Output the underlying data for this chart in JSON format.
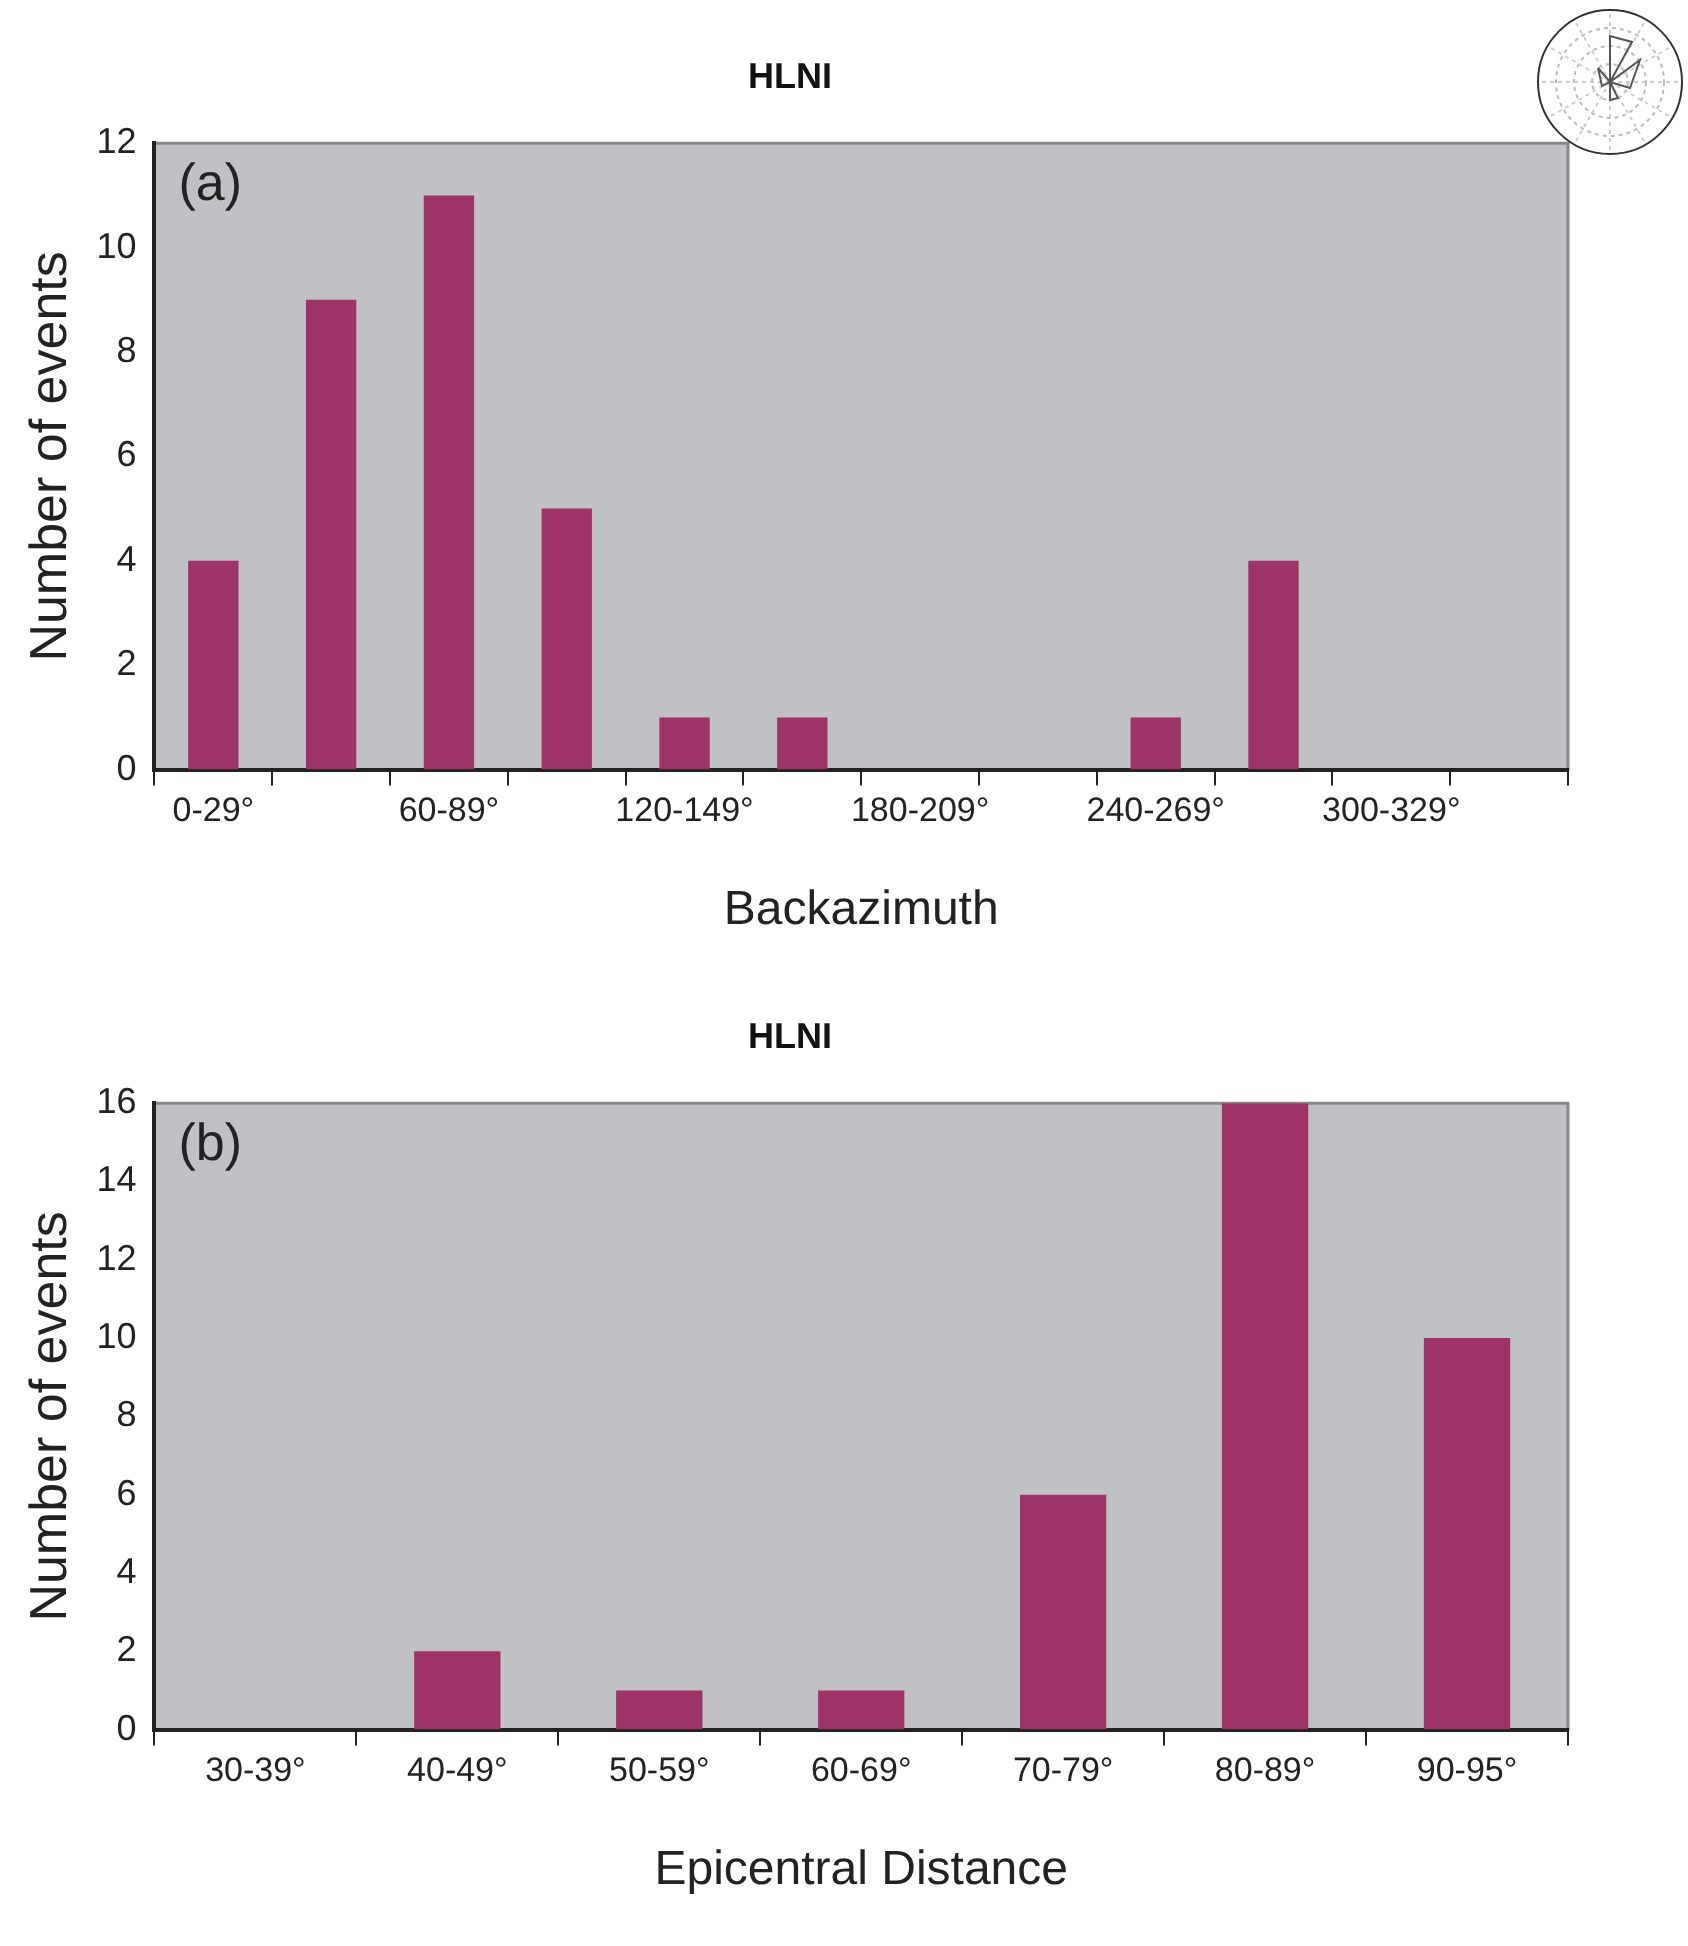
{
  "chart_data": [
    {
      "type": "bar",
      "title": "HLNI",
      "xlabel": "Backazimuth",
      "ylabel": "Number of events",
      "categories": [
        "0-29°",
        null,
        "60-89°",
        null,
        "120-149°",
        null,
        "180-209°",
        null,
        "240-269°",
        null,
        "300-329°",
        null
      ],
      "values": [
        4,
        9,
        11,
        5,
        1,
        1,
        0,
        0,
        1,
        4,
        0,
        0
      ],
      "color": "#9e3368",
      "ylim": [
        0,
        12
      ],
      "yticks": [
        0,
        2,
        4,
        6,
        8,
        10,
        12
      ],
      "grid": false,
      "annotations": [
        "(a)"
      ]
    },
    {
      "type": "bar",
      "title": "HLNI",
      "xlabel": "Epicentral Distance",
      "ylabel": "Number of events",
      "categories": [
        "30-39°",
        "40-49°",
        "50-59°",
        "60-69°",
        "70-79°",
        "80-89°",
        "90-95°"
      ],
      "values": [
        0,
        2,
        1,
        1,
        6,
        16,
        10
      ],
      "color": "#9e3368",
      "ylim": [
        0,
        16
      ],
      "yticks": [
        0,
        2,
        4,
        6,
        8,
        10,
        12,
        14,
        16
      ],
      "grid": false,
      "annotations": [
        "(b)"
      ]
    }
  ]
}
